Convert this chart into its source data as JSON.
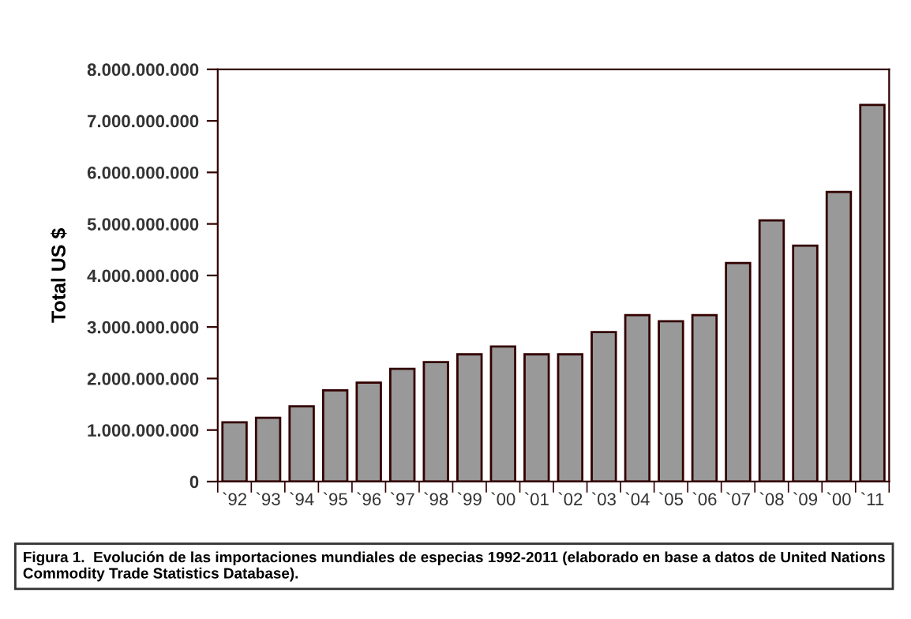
{
  "chart_data": {
    "type": "bar",
    "ylabel": "Total US $",
    "categories": [
      "`92",
      "`93",
      "`94",
      "`95",
      "`96",
      "`97",
      "`98",
      "`99",
      "`00",
      "`01",
      "`02",
      "`03",
      "`04",
      "`05",
      "`06",
      "`07",
      "`08",
      "`09",
      "`00",
      "`11"
    ],
    "values": [
      1150000000,
      1240000000,
      1460000000,
      1770000000,
      1920000000,
      2190000000,
      2320000000,
      2470000000,
      2620000000,
      2470000000,
      2470000000,
      2900000000,
      3230000000,
      3110000000,
      3230000000,
      4240000000,
      5070000000,
      4580000000,
      5620000000,
      7310000000
    ],
    "color": "#999999",
    "ylim": [
      0,
      8000000000
    ],
    "yticks": [
      0,
      {
        "value": 1000000000,
        "label": "1.000.000.000"
      },
      {
        "value": 2000000000,
        "label": "2.000.000.000"
      },
      {
        "value": 3000000000,
        "label": "3.000.000.000"
      },
      {
        "value": 4000000000,
        "label": "4.000.000.000"
      },
      {
        "value": 5000000000,
        "label": "5.000.000.000"
      },
      {
        "value": 6000000000,
        "label": "6.000.000.000"
      },
      {
        "value": 7000000000,
        "label": "7.000.000.000"
      },
      {
        "value": 8000000000,
        "label": "8.000.000.000"
      }
    ],
    "grid": false,
    "annotations": [
      "Figura 1.  Evolución de las importaciones mundiales de especias 1992-2011 (elaborado en base a datos de United Nations Commodity Trade Statistics Database)."
    ]
  }
}
